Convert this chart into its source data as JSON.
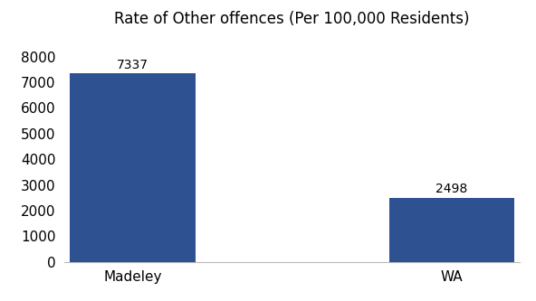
{
  "categories": [
    "Madeley",
    "WA"
  ],
  "values": [
    7337,
    2498
  ],
  "bar_color": "#2e5192",
  "title": "Rate of Other offences (Per 100,000 Residents)",
  "title_fontsize": 12,
  "label_fontsize": 11,
  "value_fontsize": 10,
  "ylim": [
    0,
    8800
  ],
  "yticks": [
    0,
    1000,
    2000,
    3000,
    4000,
    5000,
    6000,
    7000,
    8000
  ],
  "bar_width": 0.55,
  "background_color": "#ffffff",
  "x_positions": [
    0.3,
    1.7
  ]
}
